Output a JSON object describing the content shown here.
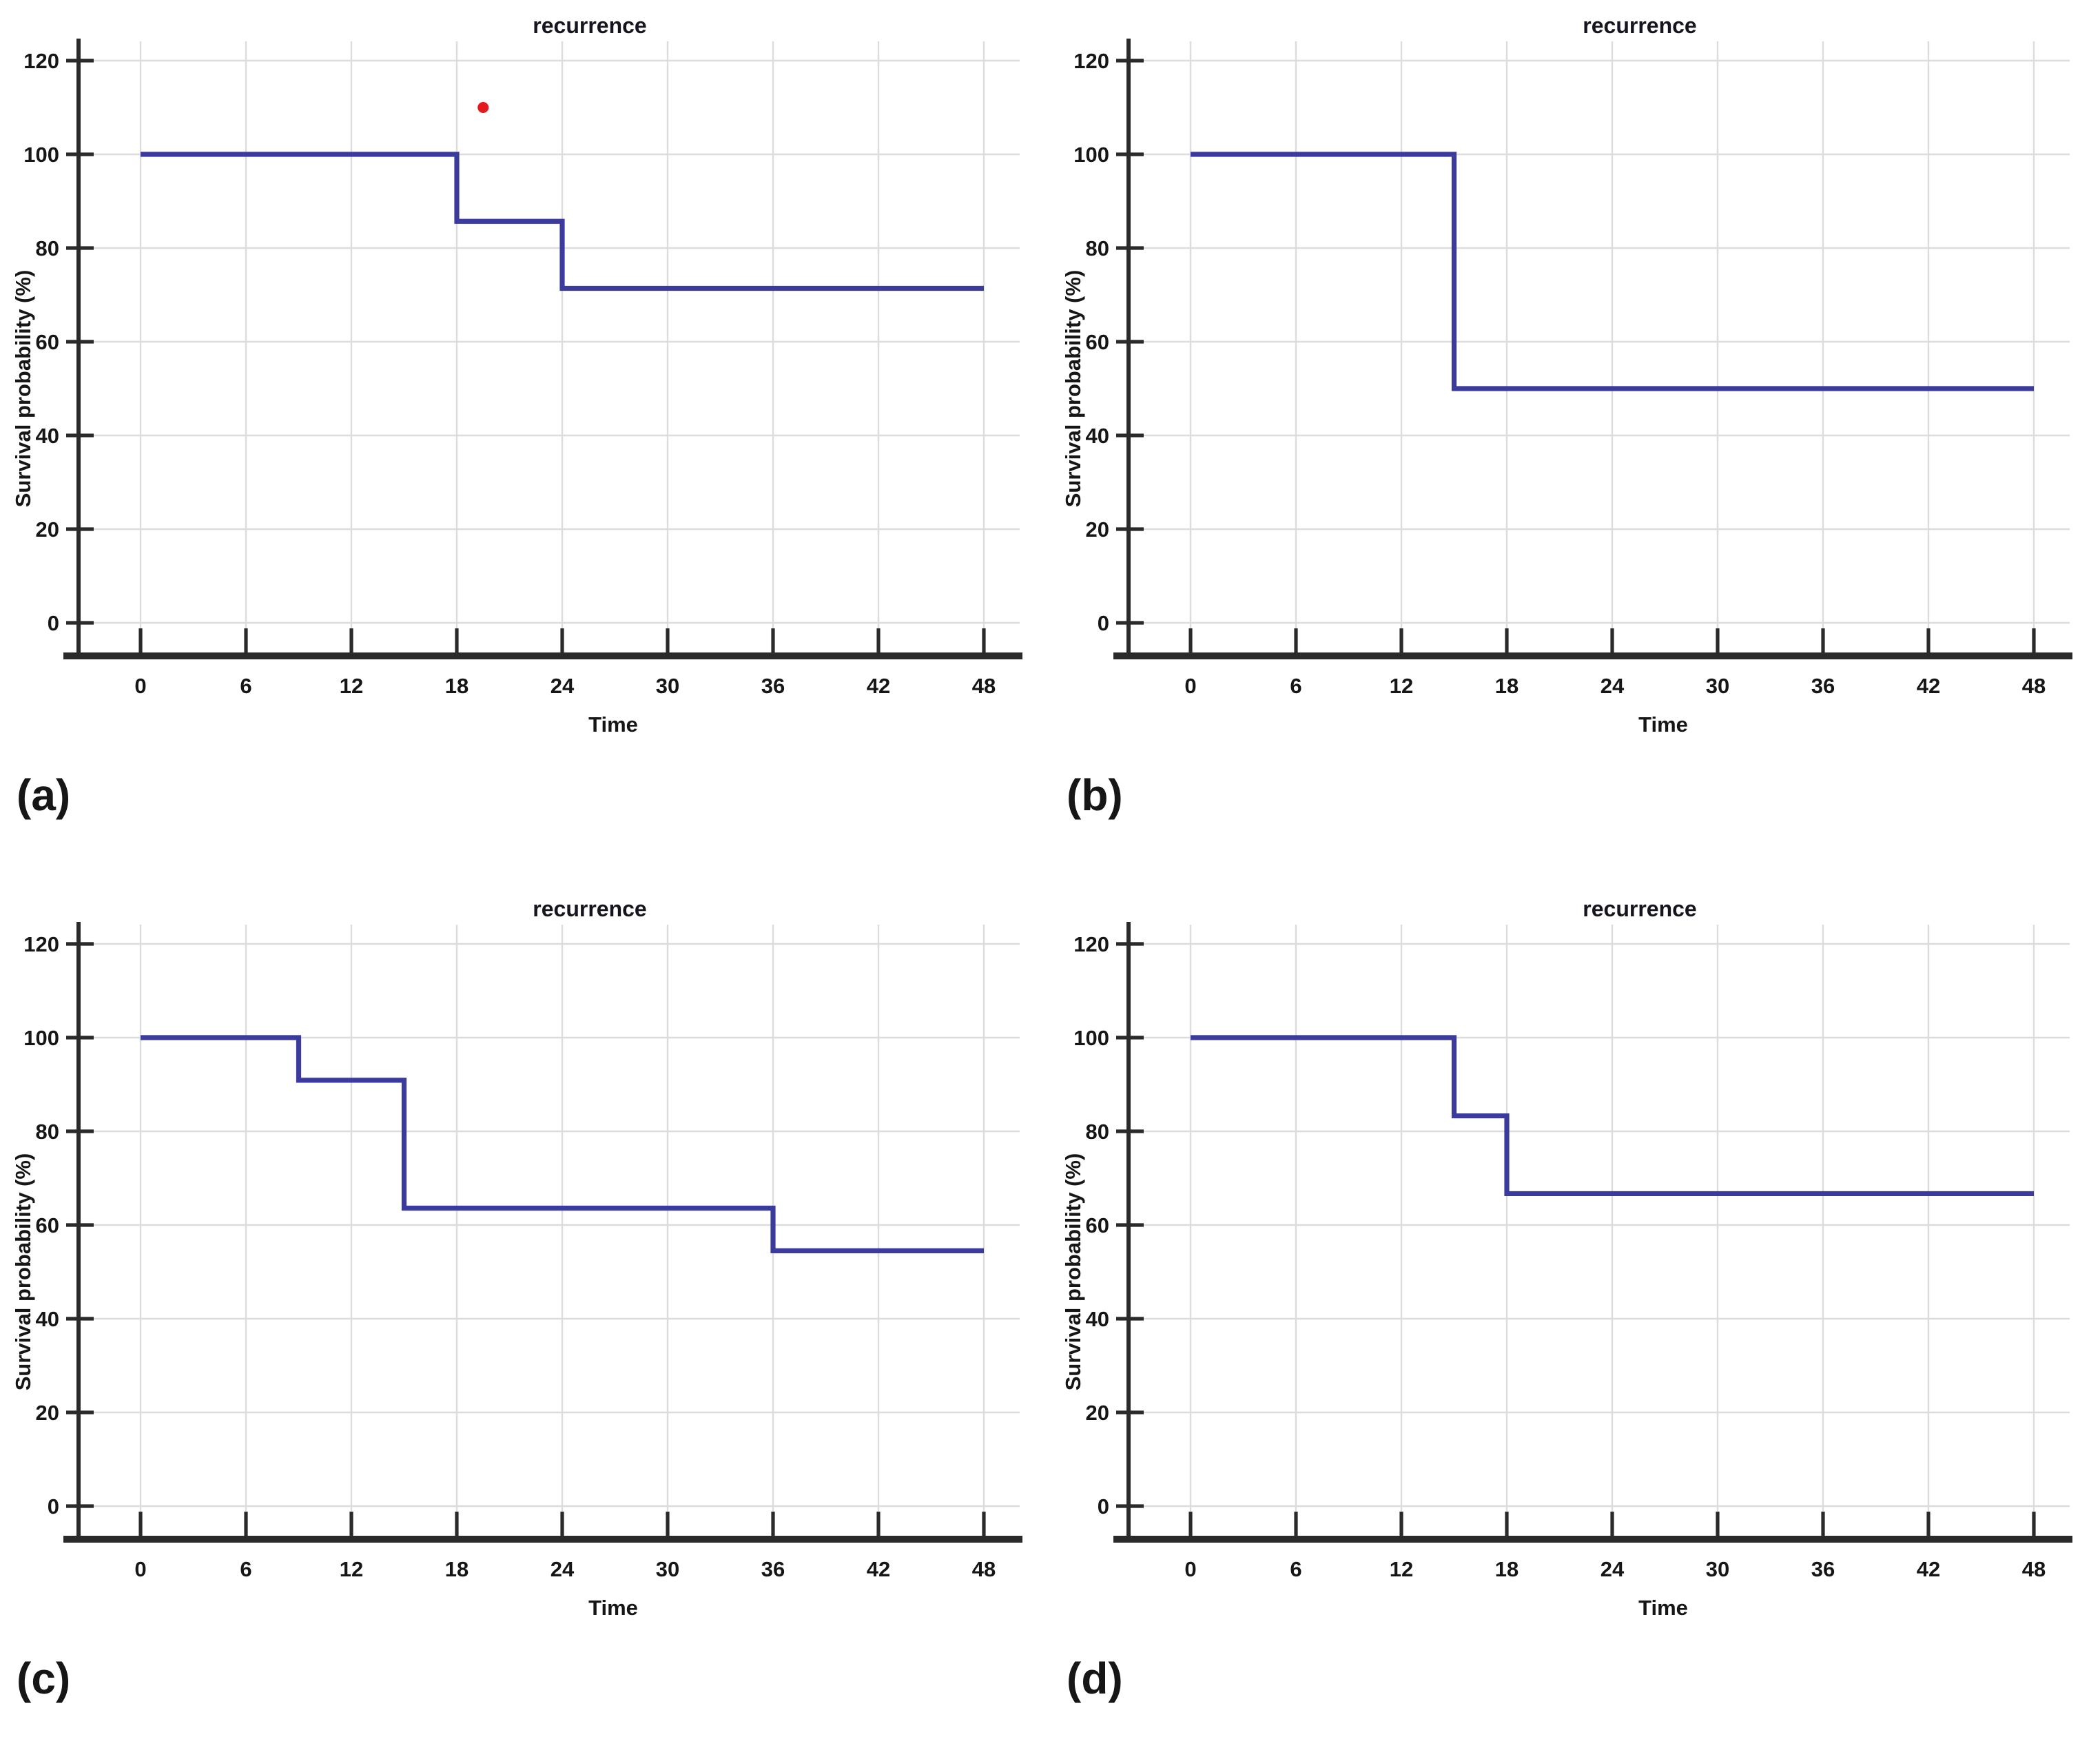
{
  "chart_data": [
    {
      "id": "a",
      "type": "line",
      "subtype": "kaplan-meier-step",
      "panel_label": "(a)",
      "title": "recurrence",
      "xlabel": "Time",
      "ylabel": "Survival probability (%)",
      "xlim": [
        0,
        48
      ],
      "ylim": [
        0,
        120
      ],
      "x_ticks": [
        0,
        6,
        12,
        18,
        24,
        30,
        36,
        42,
        48
      ],
      "y_ticks": [
        0,
        20,
        40,
        60,
        80,
        100,
        120
      ],
      "grid": true,
      "legend": "none",
      "steps": [
        [
          0,
          100
        ],
        [
          18,
          100
        ],
        [
          18,
          85.7
        ],
        [
          24,
          85.7
        ],
        [
          24,
          71.4
        ],
        [
          48,
          71.4
        ]
      ],
      "events": [
        {
          "time": 18,
          "survival_pct": 85.7
        },
        {
          "time": 24,
          "survival_pct": 71.4
        }
      ],
      "outlier_marker": {
        "x": 19.5,
        "y": 110
      }
    },
    {
      "id": "b",
      "type": "line",
      "subtype": "kaplan-meier-step",
      "panel_label": "(b)",
      "title": "recurrence",
      "xlabel": "Time",
      "ylabel": "Survival probability (%)",
      "xlim": [
        0,
        48
      ],
      "ylim": [
        0,
        120
      ],
      "x_ticks": [
        0,
        6,
        12,
        18,
        24,
        30,
        36,
        42,
        48
      ],
      "y_ticks": [
        0,
        20,
        40,
        60,
        80,
        100,
        120
      ],
      "grid": true,
      "legend": "none",
      "steps": [
        [
          0,
          100
        ],
        [
          15,
          100
        ],
        [
          15,
          50
        ],
        [
          48,
          50
        ]
      ],
      "events": [
        {
          "time": 15,
          "survival_pct": 50
        }
      ],
      "outlier_marker": null
    },
    {
      "id": "c",
      "type": "line",
      "subtype": "kaplan-meier-step",
      "panel_label": "(c)",
      "title": "recurrence",
      "xlabel": "Time",
      "ylabel": "Survival probability (%)",
      "xlim": [
        0,
        48
      ],
      "ylim": [
        0,
        120
      ],
      "x_ticks": [
        0,
        6,
        12,
        18,
        24,
        30,
        36,
        42,
        48
      ],
      "y_ticks": [
        0,
        20,
        40,
        60,
        80,
        100,
        120
      ],
      "grid": true,
      "legend": "none",
      "steps": [
        [
          0,
          100
        ],
        [
          9,
          100
        ],
        [
          9,
          90.9
        ],
        [
          15,
          90.9
        ],
        [
          15,
          63.6
        ],
        [
          36,
          63.6
        ],
        [
          36,
          54.5
        ],
        [
          48,
          54.5
        ]
      ],
      "events": [
        {
          "time": 9,
          "survival_pct": 90.9
        },
        {
          "time": 15,
          "survival_pct": 63.6
        },
        {
          "time": 36,
          "survival_pct": 54.5
        }
      ],
      "outlier_marker": null
    },
    {
      "id": "d",
      "type": "line",
      "subtype": "kaplan-meier-step",
      "panel_label": "(d)",
      "title": "recurrence",
      "xlabel": "Time",
      "ylabel": "Survival probability (%)",
      "xlim": [
        0,
        48
      ],
      "ylim": [
        0,
        120
      ],
      "x_ticks": [
        0,
        6,
        12,
        18,
        24,
        30,
        36,
        42,
        48
      ],
      "y_ticks": [
        0,
        20,
        40,
        60,
        80,
        100,
        120
      ],
      "grid": true,
      "legend": "none",
      "steps": [
        [
          0,
          100
        ],
        [
          15,
          100
        ],
        [
          15,
          83.3
        ],
        [
          18,
          83.3
        ],
        [
          18,
          66.7
        ],
        [
          48,
          66.7
        ]
      ],
      "events": [
        {
          "time": 15,
          "survival_pct": 83.3
        },
        {
          "time": 18,
          "survival_pct": 66.7
        }
      ],
      "outlier_marker": null
    }
  ],
  "colors": {
    "curve": "#3b3b9d",
    "marker_red": "#e3191c",
    "axis": "#2a2a2a",
    "grid": "#dcdcdc",
    "text": "#161616",
    "title_text": "#15151f",
    "background": "#ffffff"
  }
}
